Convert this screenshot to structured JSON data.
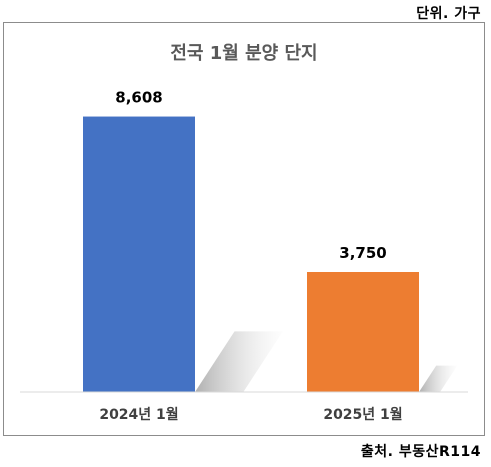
{
  "header": {
    "unit": "단위. 가구"
  },
  "footer": {
    "source": "출처. 부동산R114"
  },
  "chart_data": {
    "type": "bar",
    "title": "전국 1월 분양 단지",
    "categories": [
      "2024년 1월",
      "2025년 1월"
    ],
    "values": [
      8608,
      3750
    ],
    "data_labels": [
      "8,608",
      "3,750"
    ],
    "colors": [
      "#4472c4",
      "#ed7d31"
    ],
    "ylim": [
      0,
      10000
    ],
    "grid": false,
    "legend": "none",
    "bar_shadow": true
  }
}
